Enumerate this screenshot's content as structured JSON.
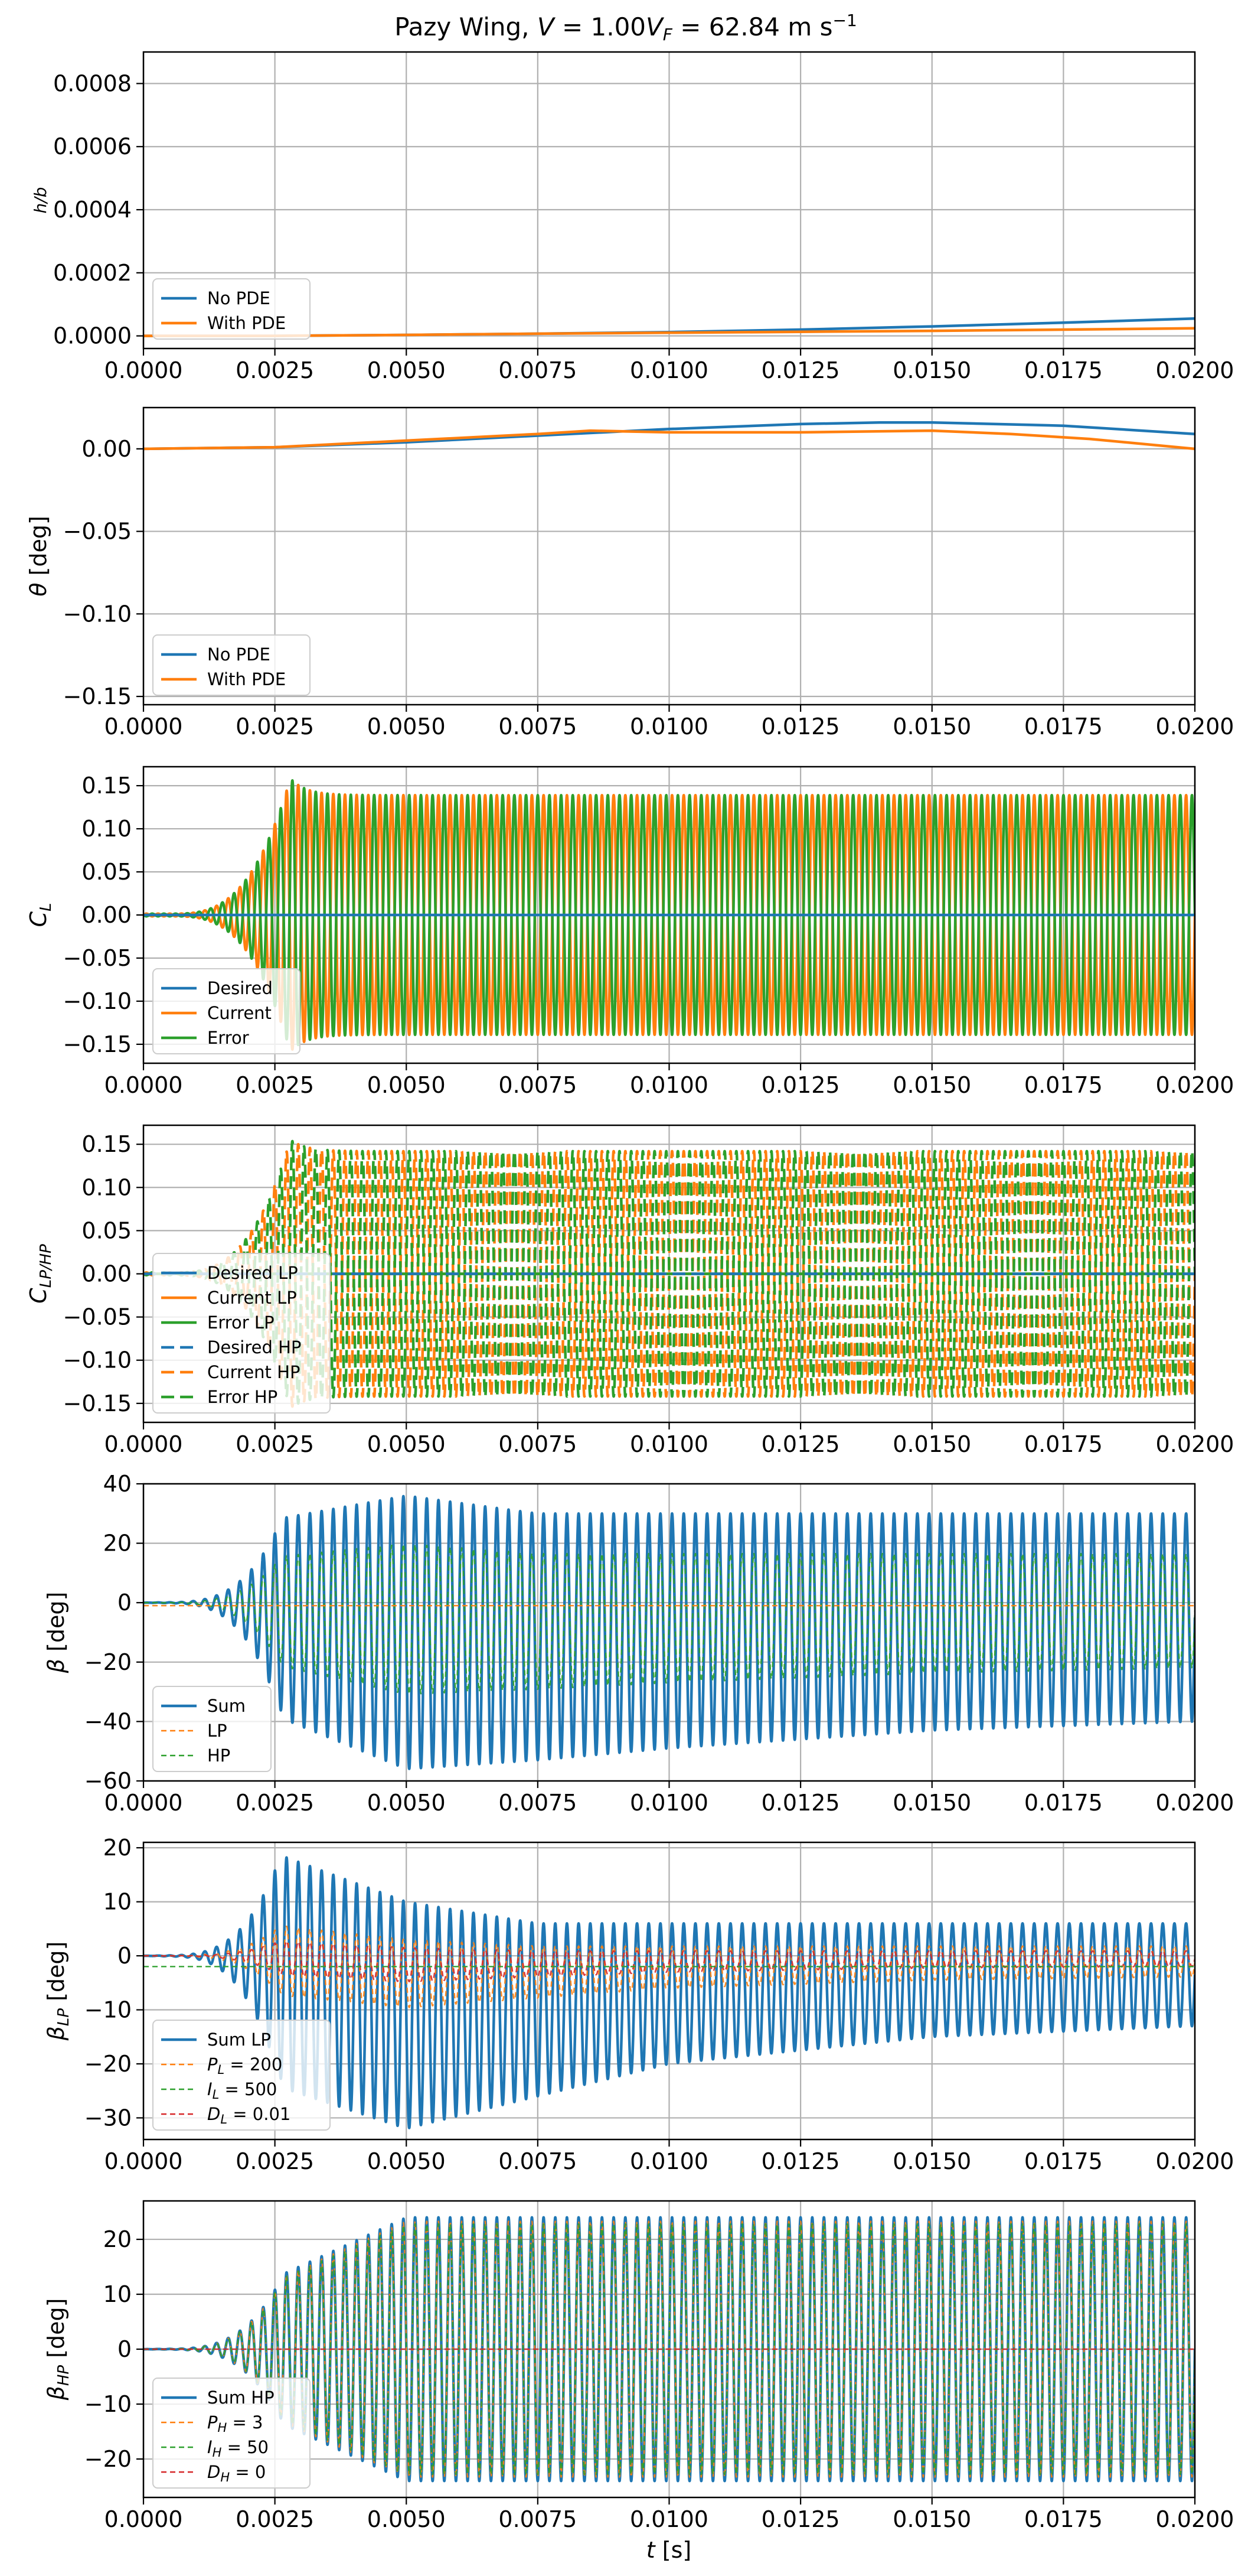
{
  "figure": {
    "title": "Pazy Wing, V = 1.00V_F = 62.84 m s^-1",
    "title_parts": {
      "prefix": "Pazy Wing, ",
      "v": "V",
      "eq1": " = 1.00",
      "v2": "V",
      "sub": "F",
      "eq2": " = 62.84 m s",
      "sup": "−1"
    },
    "xlabel": "t [s]",
    "xlabel_parts": {
      "var": "t",
      "unit": " [s]"
    },
    "xlim": [
      0,
      0.02
    ],
    "xticks": [
      "0.0000",
      "0.0025",
      "0.0050",
      "0.0075",
      "0.0100",
      "0.0125",
      "0.0150",
      "0.0175",
      "0.0200"
    ],
    "colors": {
      "blue": "#1f77b4",
      "orange": "#ff7f0e",
      "green": "#2ca02c",
      "red": "#d62728",
      "grid": "#b0b0b0"
    },
    "grid": true
  },
  "chart_data": [
    {
      "type": "line",
      "ylabel": "h/b",
      "ylim": [
        -4e-05,
        0.0009
      ],
      "yticks": [
        "0.0000",
        "0.0002",
        "0.0004",
        "0.0006",
        "0.0008"
      ],
      "legend_loc": "lower-left",
      "series": [
        {
          "name": "No PDE",
          "color": "#1f77b4",
          "x": [
            0,
            0.0025,
            0.005,
            0.0075,
            0.01,
            0.0125,
            0.015,
            0.0175,
            0.02
          ],
          "y": [
            0,
            0,
            3e-06,
            7e-06,
            1.2e-05,
            2e-05,
            3e-05,
            4.2e-05,
            5.5e-05
          ]
        },
        {
          "name": "With PDE",
          "color": "#ff7f0e",
          "x": [
            0,
            0.0025,
            0.005,
            0.0075,
            0.01,
            0.0125,
            0.015,
            0.0175,
            0.02
          ],
          "y": [
            0,
            0,
            3e-06,
            7e-06,
            1e-05,
            1.3e-05,
            1.6e-05,
            2e-05,
            2.4e-05
          ]
        }
      ]
    },
    {
      "type": "line",
      "ylabel": "θ [deg]",
      "ylim": [
        -0.155,
        0.025
      ],
      "yticks": [
        "0.00",
        "-0.05",
        "-0.10",
        "-0.15"
      ],
      "legend_loc": "lower-left",
      "series": [
        {
          "name": "No PDE",
          "color": "#1f77b4",
          "x": [
            0,
            0.0025,
            0.005,
            0.0075,
            0.01,
            0.0125,
            0.014,
            0.015,
            0.0175,
            0.02
          ],
          "y": [
            0,
            0.001,
            0.004,
            0.008,
            0.012,
            0.015,
            0.016,
            0.016,
            0.014,
            0.009
          ]
        },
        {
          "name": "With PDE",
          "color": "#ff7f0e",
          "x": [
            0,
            0.0025,
            0.005,
            0.0075,
            0.0085,
            0.01,
            0.0125,
            0.015,
            0.0165,
            0.018,
            0.02
          ],
          "y": [
            0,
            0.001,
            0.005,
            0.009,
            0.011,
            0.01,
            0.01,
            0.011,
            0.009,
            0.006,
            0.0
          ]
        }
      ]
    },
    {
      "type": "line",
      "ylabel": "C_L",
      "ylim": [
        -0.172,
        0.172
      ],
      "yticks": [
        "0.15",
        "0.10",
        "0.05",
        "0.00",
        "-0.05",
        "-0.10",
        "-0.15"
      ],
      "legend_loc": "lower-left",
      "oscillation": {
        "cycles": 90,
        "onset": 0.0005,
        "peak_time": 0.0028,
        "peak_amplitude": 0.158,
        "steady_amplitude": 0.139
      },
      "series": [
        {
          "name": "Desired",
          "color": "#1f77b4",
          "style": "solid",
          "mode": "flat",
          "value": 0
        },
        {
          "name": "Current",
          "color": "#ff7f0e",
          "style": "solid",
          "mode": "osc",
          "phase": 0
        },
        {
          "name": "Error",
          "color": "#2ca02c",
          "style": "solid",
          "mode": "osc",
          "phase": 180
        }
      ]
    },
    {
      "type": "line",
      "ylabel": "C_LP/HP",
      "ylim": [
        -0.172,
        0.172
      ],
      "yticks": [
        "0.15",
        "0.10",
        "0.05",
        "0.00",
        "-0.05",
        "-0.10",
        "-0.15"
      ],
      "legend_loc": "lower-left",
      "oscillation": {
        "cycles": 90,
        "onset": 0.0005,
        "peak_time": 0.0028,
        "peak_amplitude": 0.155,
        "steady_amplitude": 0.142
      },
      "series": [
        {
          "name": "Desired LP",
          "color": "#1f77b4",
          "style": "solid",
          "mode": "flat",
          "value": 0
        },
        {
          "name": "Current LP",
          "color": "#ff7f0e",
          "style": "solid",
          "mode": "flat",
          "value": 0
        },
        {
          "name": "Error LP",
          "color": "#2ca02c",
          "style": "solid",
          "mode": "flat",
          "value": 0
        },
        {
          "name": "Desired HP",
          "color": "#1f77b4",
          "style": "dashed",
          "mode": "flat",
          "value": 0
        },
        {
          "name": "Current HP",
          "color": "#ff7f0e",
          "style": "dashed",
          "mode": "osc",
          "phase": 0
        },
        {
          "name": "Error HP",
          "color": "#2ca02c",
          "style": "dashed",
          "mode": "osc",
          "phase": 180
        }
      ]
    },
    {
      "type": "line",
      "ylabel": "β [deg]",
      "ylim": [
        -60,
        40
      ],
      "yticks": [
        "40",
        "20",
        "0",
        "-20",
        "-40",
        "-60"
      ],
      "legend_loc": "lower-left",
      "oscillation": {
        "cycles": 90,
        "onset": 0.0005
      },
      "envelope": {
        "upper": [
          [
            0,
            0
          ],
          [
            0.0025,
            28
          ],
          [
            0.005,
            36
          ],
          [
            0.0075,
            30
          ],
          [
            0.02,
            30
          ]
        ],
        "lower": [
          [
            0,
            0
          ],
          [
            0.0025,
            -38
          ],
          [
            0.005,
            -56
          ],
          [
            0.0075,
            -53
          ],
          [
            0.01,
            -49
          ],
          [
            0.015,
            -43
          ],
          [
            0.02,
            -40
          ]
        ]
      },
      "series": [
        {
          "name": "Sum",
          "color": "#1f77b4",
          "style": "solid",
          "mode": "osc-env"
        },
        {
          "name": "LP",
          "color": "#ff7f0e",
          "style": "dashed-thin",
          "mode": "flat",
          "value": -1
        },
        {
          "name": "HP",
          "color": "#2ca02c",
          "style": "dashed-thin",
          "mode": "osc-env",
          "scale": 0.55
        }
      ]
    },
    {
      "type": "line",
      "ylabel": "β_LP [deg]",
      "ylim": [
        -34,
        21
      ],
      "yticks": [
        "20",
        "10",
        "0",
        "-10",
        "-20",
        "-30"
      ],
      "legend_loc": "lower-left",
      "oscillation": {
        "cycles": 90,
        "onset": 0.0005
      },
      "envelope": {
        "upper": [
          [
            0,
            0
          ],
          [
            0.0025,
            19
          ],
          [
            0.005,
            10
          ],
          [
            0.0075,
            6
          ],
          [
            0.02,
            6
          ]
        ],
        "lower": [
          [
            0,
            0
          ],
          [
            0.0025,
            -24
          ],
          [
            0.005,
            -32
          ],
          [
            0.0075,
            -26
          ],
          [
            0.01,
            -20
          ],
          [
            0.015,
            -15
          ],
          [
            0.02,
            -13
          ]
        ]
      },
      "series": [
        {
          "name": "Sum LP",
          "color": "#1f77b4",
          "style": "solid",
          "mode": "osc-env"
        },
        {
          "name": "P_L = 200",
          "color": "#ff7f0e",
          "style": "dashed-thin",
          "mode": "osc-env",
          "scale": 0.3
        },
        {
          "name": "I_L = 500",
          "color": "#2ca02c",
          "style": "dashed-thin",
          "mode": "flat",
          "value": -2
        },
        {
          "name": "D_L = 0.01",
          "color": "#d62728",
          "style": "dashed-thin",
          "mode": "osc-env",
          "scale": 0.15
        }
      ]
    },
    {
      "type": "line",
      "ylabel": "β_HP [deg]",
      "ylim": [
        -27,
        27
      ],
      "yticks": [
        "20",
        "10",
        "0",
        "-10",
        "-20"
      ],
      "legend_loc": "lower-left",
      "oscillation": {
        "cycles": 90,
        "onset": 0.0005
      },
      "envelope": {
        "upper": [
          [
            0,
            0
          ],
          [
            0.0025,
            13
          ],
          [
            0.005,
            24
          ],
          [
            0.02,
            24
          ]
        ],
        "lower": [
          [
            0,
            0
          ],
          [
            0.0025,
            -13
          ],
          [
            0.005,
            -24
          ],
          [
            0.02,
            -24
          ]
        ]
      },
      "series": [
        {
          "name": "Sum HP",
          "color": "#1f77b4",
          "style": "solid",
          "mode": "osc-env"
        },
        {
          "name": "P_H = 3",
          "color": "#ff7f0e",
          "style": "dashed-thin",
          "mode": "osc-env",
          "scale": 0.97
        },
        {
          "name": "I_H = 50",
          "color": "#2ca02c",
          "style": "dashed-thin",
          "mode": "osc-env",
          "scale": 0.95
        },
        {
          "name": "D_H = 0",
          "color": "#d62728",
          "style": "dashed-thin",
          "mode": "flat",
          "value": 0
        }
      ]
    }
  ]
}
